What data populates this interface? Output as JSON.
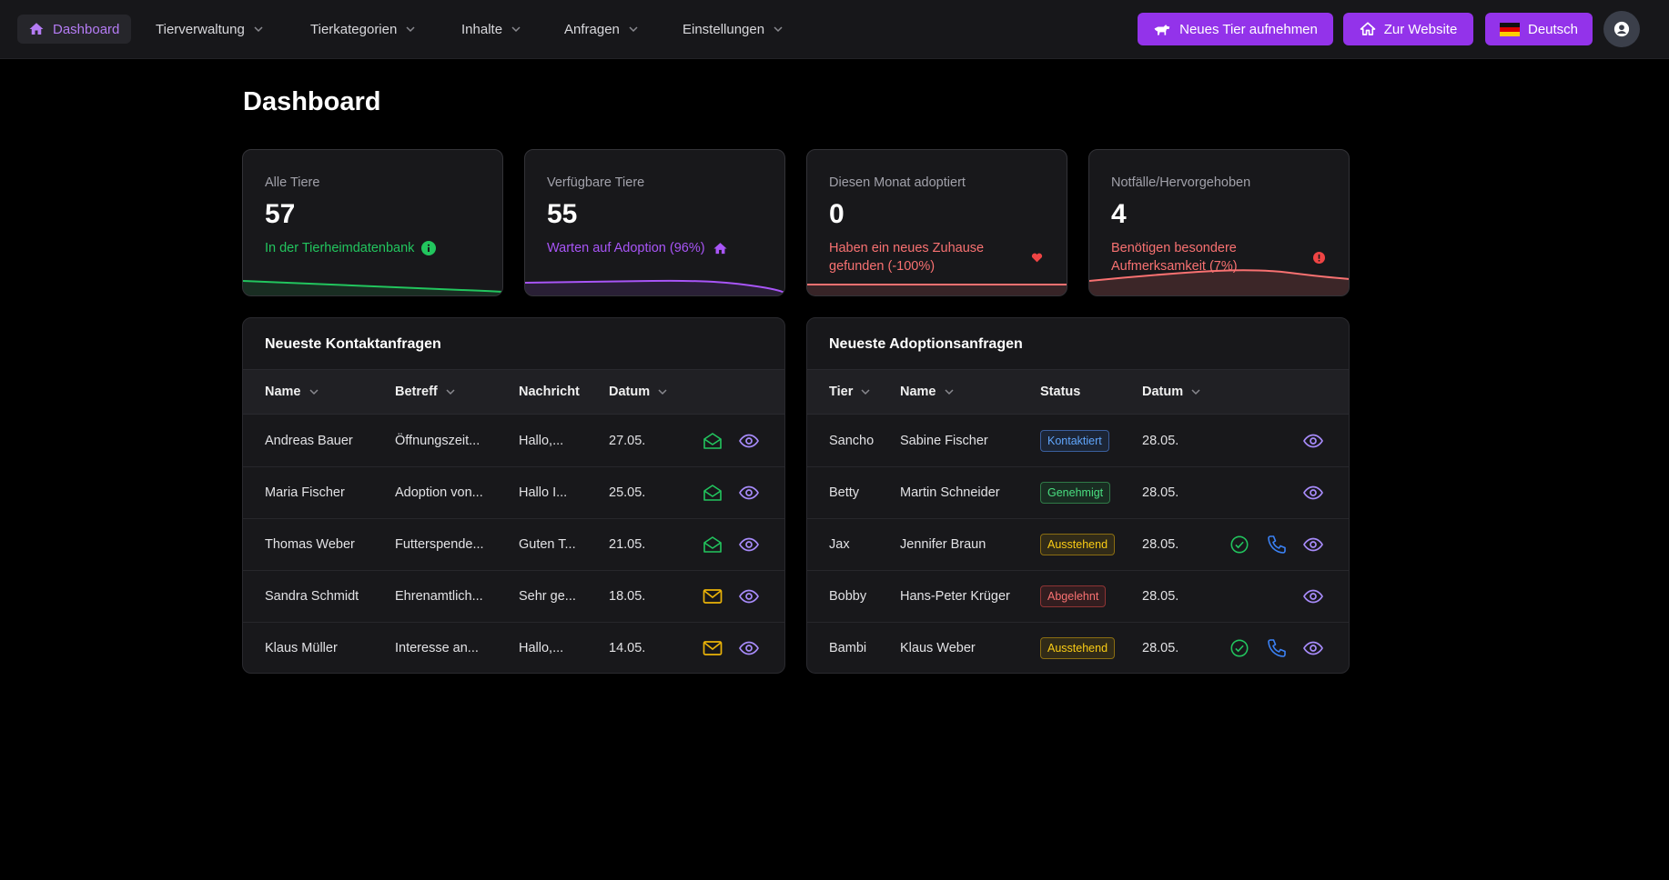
{
  "nav": {
    "dashboard": "Dashboard",
    "items": [
      "Tierverwaltung",
      "Tierkategorien",
      "Inhalte",
      "Anfragen",
      "Einstellungen"
    ],
    "new_animal_btn": "Neues Tier aufnehmen",
    "website_btn": "Zur Website",
    "language_btn": "Deutsch"
  },
  "page_title": "Dashboard",
  "stats": [
    {
      "label": "Alle Tiere",
      "value": "57",
      "sub": "In der Tierheimdatenbank",
      "color": "#22c55e"
    },
    {
      "label": "Verfügbare Tiere",
      "value": "55",
      "sub": "Warten auf Adoption (96%)",
      "color": "#a855f7"
    },
    {
      "label": "Diesen Monat adoptiert",
      "value": "0",
      "sub": "Haben ein neues Zuhause gefunden (-100%)",
      "color": "#f87171"
    },
    {
      "label": "Notfälle/Hervorgehoben",
      "value": "4",
      "sub": "Benötigen besondere Aufmerksamkeit (7%)",
      "color": "#f87171"
    }
  ],
  "contacts": {
    "title": "Neueste Kontaktanfragen",
    "headers": [
      "Name",
      "Betreff",
      "Nachricht",
      "Datum"
    ],
    "rows": [
      {
        "name": "Andreas Bauer",
        "subject": "Öffnungszeit...",
        "message": "Hallo,...",
        "date": "27.05.",
        "read": true
      },
      {
        "name": "Maria Fischer",
        "subject": "Adoption von...",
        "message": "Hallo I...",
        "date": "25.05.",
        "read": true
      },
      {
        "name": "Thomas Weber",
        "subject": "Futterspende...",
        "message": "Guten T...",
        "date": "21.05.",
        "read": true
      },
      {
        "name": "Sandra Schmidt",
        "subject": "Ehrenamtlich...",
        "message": "Sehr ge...",
        "date": "18.05.",
        "read": false
      },
      {
        "name": "Klaus Müller",
        "subject": "Interesse an...",
        "message": "Hallo,...",
        "date": "14.05.",
        "read": false
      }
    ]
  },
  "adoptions": {
    "title": "Neueste Adoptionsanfragen",
    "headers": [
      "Tier",
      "Name",
      "Status",
      "Datum"
    ],
    "rows": [
      {
        "animal": "Sancho",
        "name": "Sabine Fischer",
        "status": "Kontaktiert",
        "status_key": "contacted",
        "date": "28.05.",
        "actions": false
      },
      {
        "animal": "Betty",
        "name": "Martin Schneider",
        "status": "Genehmigt",
        "status_key": "approved",
        "date": "28.05.",
        "actions": false
      },
      {
        "animal": "Jax",
        "name": "Jennifer Braun",
        "status": "Ausstehend",
        "status_key": "pending",
        "date": "28.05.",
        "actions": true
      },
      {
        "animal": "Bobby",
        "name": "Hans-Peter Krüger",
        "status": "Abgelehnt",
        "status_key": "rejected",
        "date": "28.05.",
        "actions": false
      },
      {
        "animal": "Bambi",
        "name": "Klaus Weber",
        "status": "Ausstehend",
        "status_key": "pending",
        "date": "28.05.",
        "actions": true
      }
    ]
  }
}
